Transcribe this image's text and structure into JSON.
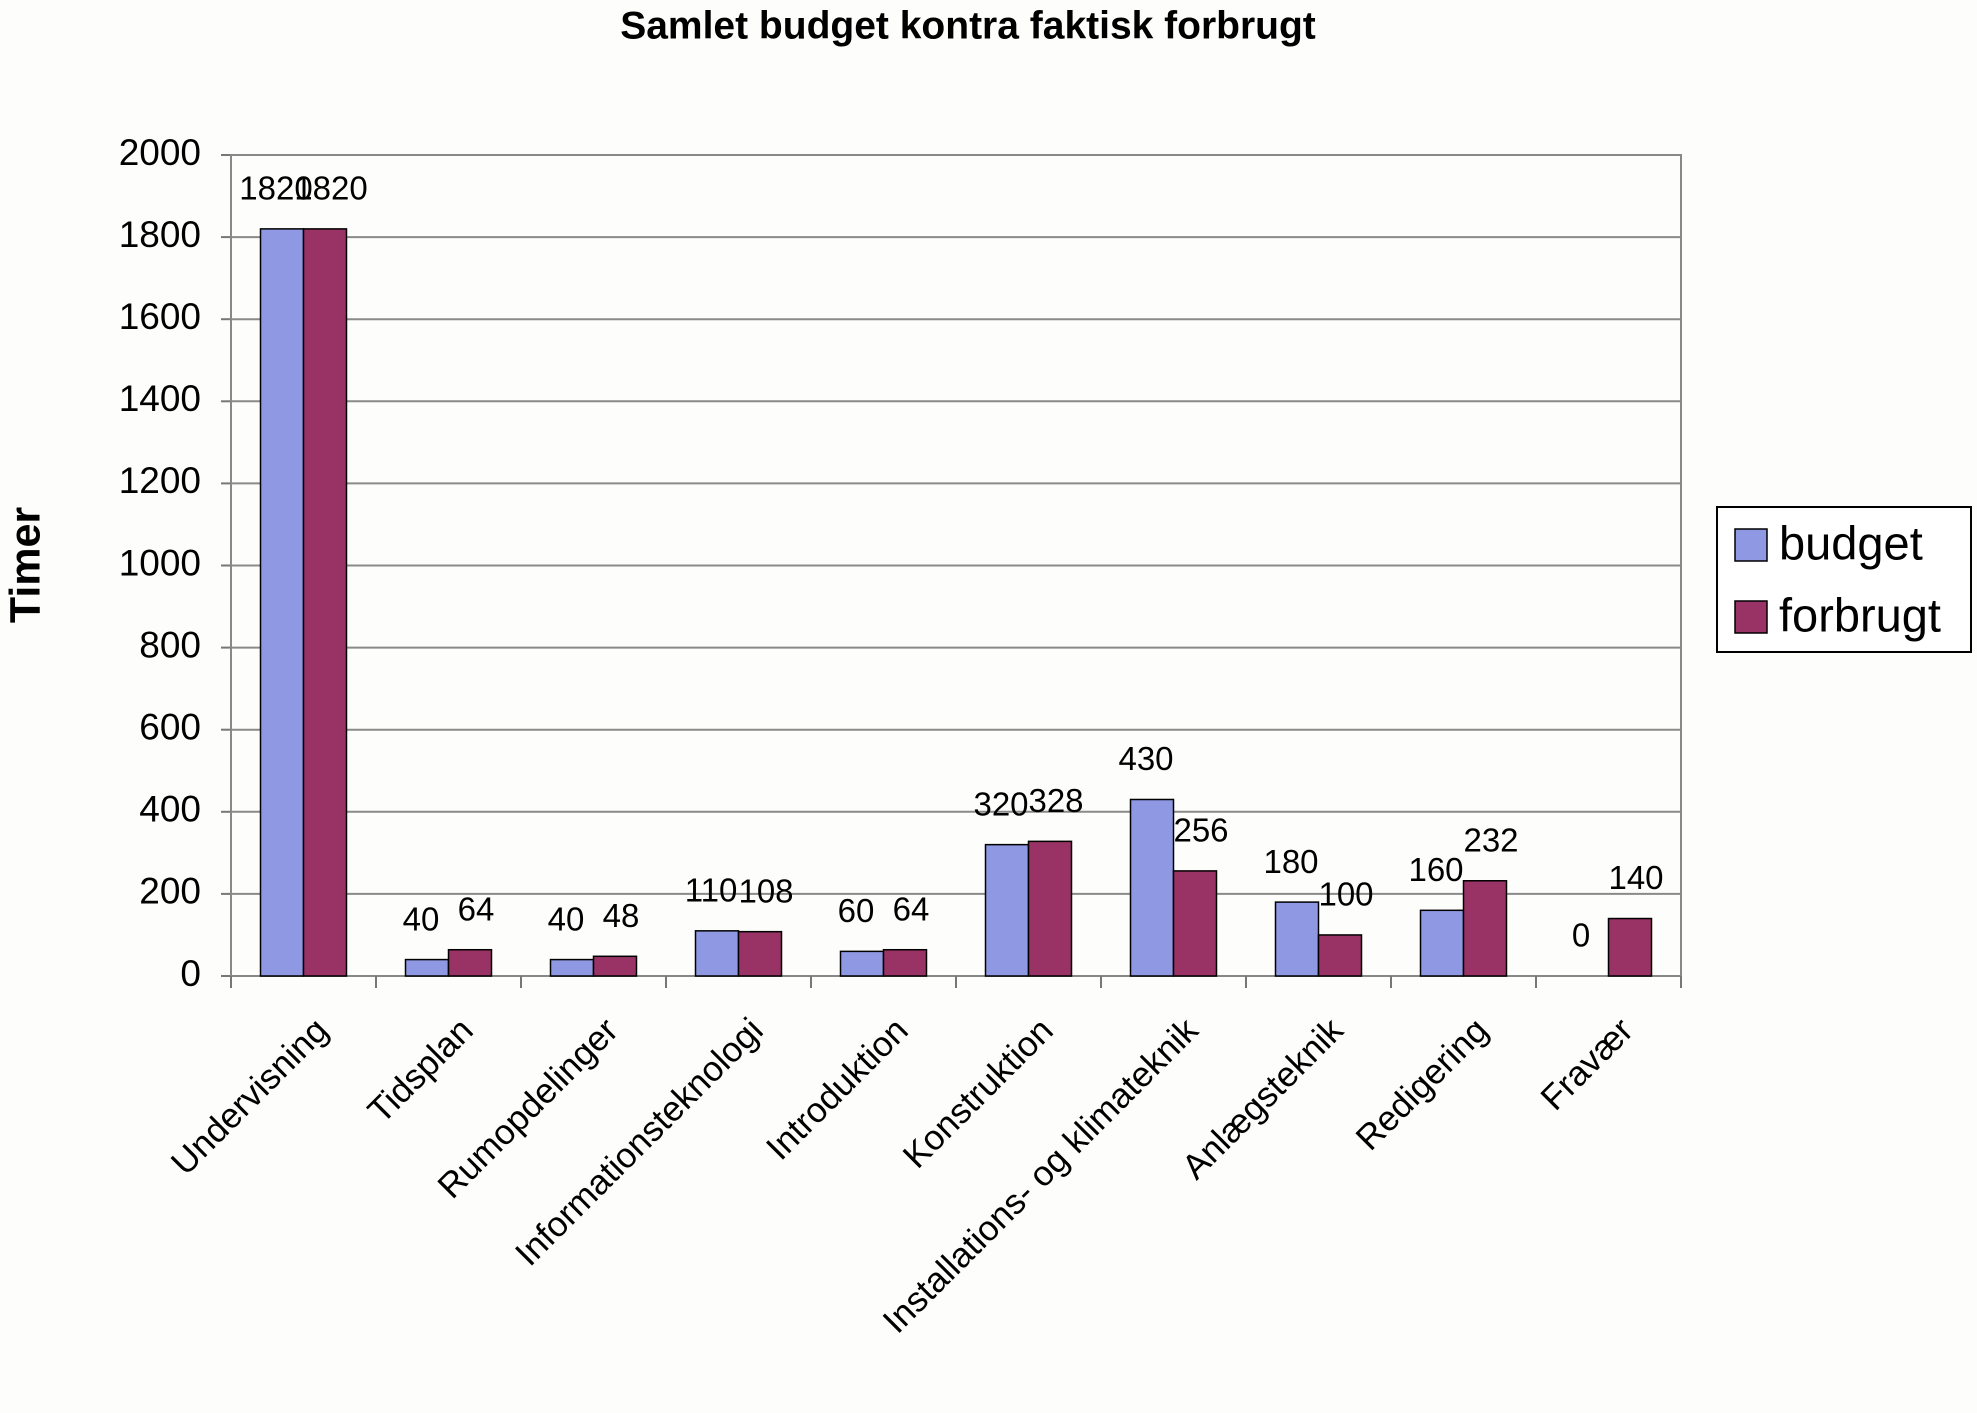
{
  "chart_data": {
    "type": "bar",
    "title": "Samlet budget kontra faktisk forbrugt",
    "y_label": "Timer",
    "categories": [
      "Undervisning",
      "Tidsplan",
      "Rumopdelinger",
      "Informationsteknologi",
      "Introduktion",
      "Konstruktion",
      "Installations- og klimateknik",
      "Anlægsteknik",
      "Redigering",
      "Fravær"
    ],
    "series": [
      {
        "name": "budget",
        "color": "#8f98e2",
        "values": [
          1820,
          40,
          40,
          110,
          60,
          320,
          430,
          180,
          160,
          0
        ]
      },
      {
        "name": "forbrugt",
        "color": "#993366",
        "values": [
          1820,
          64,
          48,
          108,
          64,
          328,
          256,
          100,
          232,
          140
        ]
      }
    ],
    "ylim": [
      0,
      2000
    ],
    "yticks": [
      0,
      200,
      400,
      600,
      800,
      1000,
      1200,
      1400,
      1600,
      1800,
      2000
    ],
    "grid": true,
    "legend": "right"
  }
}
